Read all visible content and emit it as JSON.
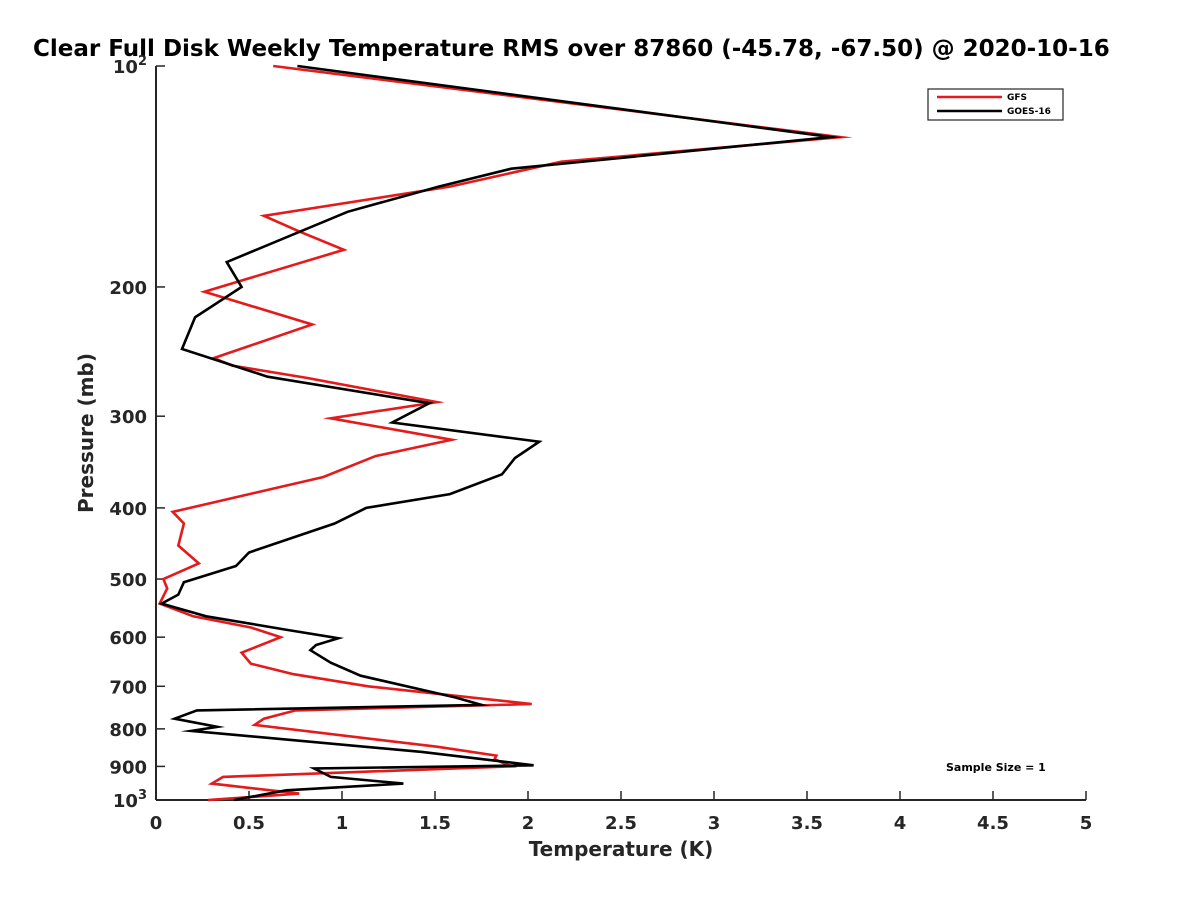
{
  "chart_data": {
    "type": "line",
    "title": "Clear Full Disk Weekly Temperature RMS over 87860 (-45.78, -67.50) @ 2020-10-16",
    "xlabel": "Temperature (K)",
    "ylabel": "Pressure (mb)",
    "xlim": [
      0,
      5
    ],
    "ylim": [
      100,
      1000
    ],
    "y_scale": "log",
    "y_reversed": true,
    "x_ticks": [
      0,
      0.5,
      1,
      1.5,
      2,
      2.5,
      3,
      3.5,
      4,
      4.5,
      5
    ],
    "x_tick_labels": [
      "0",
      "0.5",
      "1",
      "1.5",
      "2",
      "2.5",
      "3",
      "3.5",
      "4",
      "4.5",
      "5"
    ],
    "y_ticks": [
      100,
      200,
      300,
      400,
      500,
      600,
      700,
      800,
      900,
      1000
    ],
    "y_tick_labels": [
      {
        "base": "10",
        "exp": "2"
      },
      {
        "base": "200",
        "exp": ""
      },
      {
        "base": "300",
        "exp": ""
      },
      {
        "base": "400",
        "exp": ""
      },
      {
        "base": "500",
        "exp": ""
      },
      {
        "base": "600",
        "exp": ""
      },
      {
        "base": "700",
        "exp": ""
      },
      {
        "base": "800",
        "exp": ""
      },
      {
        "base": "900",
        "exp": ""
      },
      {
        "base": "10",
        "exp": "3"
      }
    ],
    "grid": false,
    "legend_position": "top-right",
    "annotation": "Sample Size = 1",
    "series": [
      {
        "name": "GFS",
        "color": "#e41a1c",
        "points": [
          [
            0.63,
            100
          ],
          [
            3.68,
            125
          ],
          [
            2.18,
            135
          ],
          [
            1.58,
            146
          ],
          [
            0.58,
            160
          ],
          [
            0.77,
            168
          ],
          [
            1.01,
            178
          ],
          [
            0.26,
            203
          ],
          [
            0.84,
            225
          ],
          [
            0.31,
            250
          ],
          [
            0.41,
            256
          ],
          [
            0.81,
            266
          ],
          [
            1.51,
            287
          ],
          [
            0.94,
            302
          ],
          [
            1.59,
            323
          ],
          [
            1.18,
            340
          ],
          [
            0.9,
            363
          ],
          [
            0.56,
            380
          ],
          [
            0.09,
            405
          ],
          [
            0.15,
            420
          ],
          [
            0.12,
            450
          ],
          [
            0.23,
            476
          ],
          [
            0.04,
            500
          ],
          [
            0.06,
            515
          ],
          [
            0.02,
            540
          ],
          [
            0.2,
            562
          ],
          [
            0.51,
            582
          ],
          [
            0.67,
            600
          ],
          [
            0.46,
            630
          ],
          [
            0.51,
            652
          ],
          [
            0.74,
            674
          ],
          [
            1.14,
            700
          ],
          [
            2.02,
            740
          ],
          [
            0.75,
            755
          ],
          [
            0.58,
            775
          ],
          [
            0.53,
            790
          ],
          [
            1.51,
            846
          ],
          [
            1.83,
            870
          ],
          [
            1.82,
            880
          ],
          [
            1.91,
            900
          ],
          [
            0.36,
            930
          ],
          [
            0.3,
            950
          ],
          [
            0.77,
            980
          ],
          [
            0.28,
            1000
          ]
        ]
      },
      {
        "name": "GOES-16",
        "color": "#000000",
        "points": [
          [
            0.76,
            100
          ],
          [
            3.63,
            125
          ],
          [
            1.91,
            138
          ],
          [
            1.52,
            146
          ],
          [
            1.03,
            158
          ],
          [
            0.38,
            185
          ],
          [
            0.46,
            200
          ],
          [
            0.21,
            220
          ],
          [
            0.14,
            243
          ],
          [
            0.6,
            265
          ],
          [
            1.47,
            288
          ],
          [
            1.27,
            306
          ],
          [
            2.06,
            325
          ],
          [
            1.93,
            342
          ],
          [
            1.86,
            360
          ],
          [
            1.58,
            383
          ],
          [
            1.13,
            400
          ],
          [
            0.96,
            420
          ],
          [
            0.5,
            460
          ],
          [
            0.43,
            480
          ],
          [
            0.15,
            505
          ],
          [
            0.12,
            525
          ],
          [
            0.03,
            540
          ],
          [
            0.27,
            562
          ],
          [
            0.68,
            585
          ],
          [
            0.98,
            602
          ],
          [
            0.86,
            615
          ],
          [
            0.83,
            625
          ],
          [
            0.94,
            650
          ],
          [
            1.1,
            677
          ],
          [
            1.61,
            725
          ],
          [
            1.75,
            742
          ],
          [
            0.22,
            755
          ],
          [
            0.1,
            775
          ],
          [
            0.33,
            795
          ],
          [
            0.19,
            805
          ],
          [
            1.43,
            860
          ],
          [
            2.03,
            897
          ],
          [
            0.85,
            906
          ],
          [
            0.94,
            930
          ],
          [
            1.33,
            950
          ],
          [
            0.7,
            970
          ],
          [
            0.42,
            1000
          ]
        ]
      }
    ]
  }
}
